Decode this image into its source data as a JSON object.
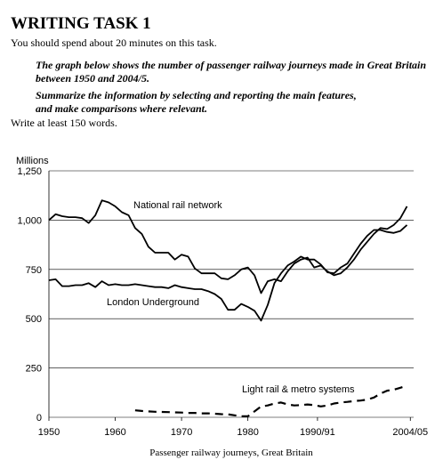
{
  "header": {
    "title": "WRITING TASK 1",
    "instruction": "You should spend about 20 minutes on this task.",
    "prompt": [
      "The graph below shows the number of passenger railway journeys made in Great Britain",
      "between 1950 and 2004/5."
    ],
    "task": [
      "Summarize the information by selecting and reporting the main features,",
      "and make comparisons where relevant."
    ],
    "words": "Write at least 150 words."
  },
  "chart_data": {
    "type": "line",
    "y_label": "Millions",
    "x_label": "Passenger railway journeys, Great Britain",
    "x": [
      1950,
      1951,
      1952,
      1953,
      1954,
      1955,
      1956,
      1957,
      1958,
      1959,
      1960,
      1961,
      1962,
      1963,
      1964,
      1965,
      1966,
      1967,
      1968,
      1969,
      1970,
      1971,
      1972,
      1973,
      1974,
      1975,
      1976,
      1977,
      1978,
      1979,
      1980,
      1981,
      1982,
      1983,
      1984,
      1985,
      1986,
      1987,
      1988,
      1989,
      1990,
      1991,
      1992,
      1993,
      1994,
      1995,
      1996,
      1997,
      1998,
      1999,
      2000,
      2001,
      2002,
      2003,
      2004
    ],
    "xlim": [
      1950,
      2005
    ],
    "xticks": [
      1950,
      1960,
      1970,
      1980,
      {
        "value": 1990.5,
        "label": "1990/91"
      },
      {
        "value": 2004.5,
        "label": "2004/05"
      }
    ],
    "ylim": [
      0,
      1250
    ],
    "yticks": [
      0,
      250,
      500,
      750,
      {
        "value": 1000,
        "label": "1,000"
      },
      {
        "value": 1250,
        "label": "1,250"
      }
    ],
    "grid": true,
    "series": [
      {
        "name": "National rail network",
        "color": "#000000",
        "style": "solid",
        "values": [
          1000,
          1030,
          1020,
          1015,
          1015,
          1010,
          985,
          1025,
          1100,
          1090,
          1070,
          1040,
          1025,
          960,
          930,
          865,
          835,
          835,
          835,
          800,
          825,
          815,
          755,
          730,
          730,
          730,
          705,
          700,
          720,
          750,
          760,
          720,
          630,
          690,
          700,
          690,
          740,
          780,
          800,
          810,
          760,
          770,
          740,
          720,
          730,
          760,
          800,
          850,
          890,
          930,
          960,
          955,
          975,
          1010,
          1070
        ]
      },
      {
        "name": "London Underground",
        "color": "#000000",
        "style": "solid",
        "values": [
          695,
          700,
          665,
          665,
          670,
          670,
          680,
          660,
          690,
          670,
          675,
          670,
          670,
          675,
          670,
          665,
          660,
          660,
          655,
          670,
          660,
          655,
          650,
          650,
          640,
          625,
          600,
          545,
          545,
          575,
          560,
          540,
          490,
          570,
          680,
          730,
          770,
          790,
          815,
          800,
          800,
          775,
          735,
          730,
          760,
          780,
          830,
          880,
          920,
          950,
          950,
          940,
          935,
          945,
          975
        ]
      },
      {
        "name": "Light rail & metro systems",
        "color": "#000000",
        "style": "dashed",
        "values": [
          null,
          null,
          null,
          null,
          null,
          null,
          null,
          null,
          null,
          null,
          null,
          null,
          null,
          35,
          32,
          30,
          28,
          27,
          26,
          25,
          24,
          22,
          22,
          20,
          20,
          18,
          16,
          15,
          10,
          5,
          5,
          30,
          55,
          60,
          70,
          75,
          65,
          60,
          62,
          65,
          62,
          55,
          60,
          70,
          75,
          78,
          82,
          85,
          90,
          100,
          120,
          135,
          140,
          150,
          160
        ]
      }
    ]
  }
}
